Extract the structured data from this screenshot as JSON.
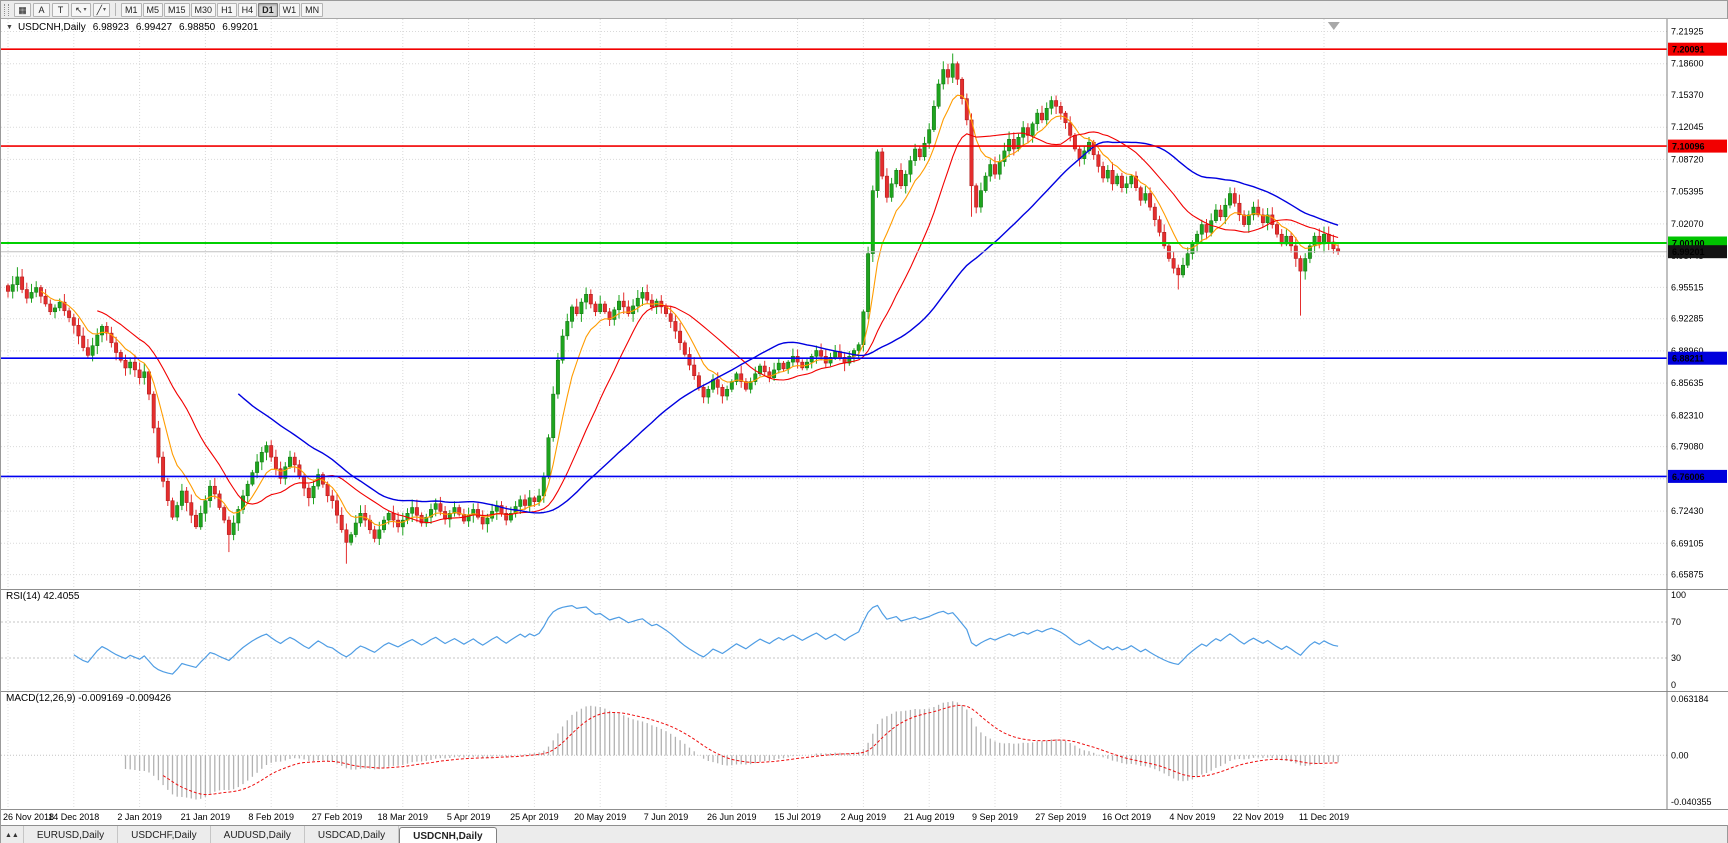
{
  "toolbar": {
    "icon_buttons": [
      {
        "name": "charts-grid-icon",
        "glyph": "▦"
      },
      {
        "name": "autoscroll-button",
        "glyph": "A"
      },
      {
        "name": "templates-button",
        "glyph": "T"
      },
      {
        "name": "cursor-tools-button",
        "glyph": "↖",
        "caret": "▾"
      },
      {
        "name": "line-tools-button",
        "glyph": "╱",
        "caret": "▾"
      }
    ],
    "timeframes": [
      "M1",
      "M5",
      "M15",
      "M30",
      "H1",
      "H4",
      "D1",
      "W1",
      "MN"
    ],
    "active_timeframe": "D1"
  },
  "chart_header": {
    "symbol": "USDCNH,Daily",
    "open": "6.98923",
    "high": "6.99427",
    "low": "6.98850",
    "close": "6.99201"
  },
  "rsi": {
    "header": "RSI(14) 42.4055",
    "levels": [
      100,
      70,
      30,
      0
    ],
    "line_color": "#4f9de4"
  },
  "macd": {
    "header": "MACD(12,26,9) -0.009169 -0.009426",
    "axis_top": "0.063184",
    "axis_zero": "0.00",
    "axis_bottom": "-0.040355",
    "hist_color": "#b2b2b2",
    "signal_color": "#ee1010"
  },
  "price_axis": {
    "labels": [
      "7.21925",
      "7.18600",
      "7.15370",
      "7.12045",
      "7.08720",
      "7.05395",
      "7.02070",
      "6.98745",
      "6.95515",
      "6.92285",
      "6.88960",
      "6.85635",
      "6.82310",
      "6.79080",
      "6.75755",
      "6.72430",
      "6.69105",
      "6.65875"
    ]
  },
  "hlines": [
    {
      "price": 7.20091,
      "label": "7.20091",
      "line": "#f20000",
      "badge": "#f20000",
      "width": 1.6
    },
    {
      "price": 7.10096,
      "label": "7.10096",
      "line": "#f20000",
      "badge": "#f20000",
      "width": 1.6
    },
    {
      "price": 7.001,
      "label": "7.00100",
      "line": "#00d000",
      "badge": "#00c400",
      "width": 2
    },
    {
      "price": 6.99201,
      "label": "6.99201",
      "line": "#c0c0c0",
      "badge": "#141414",
      "width": 1,
      "current": true
    },
    {
      "price": 6.88211,
      "label": "6.88211",
      "line": "#0000f0",
      "badge": "#0000dc",
      "width": 1.6
    },
    {
      "price": 6.76006,
      "label": "6.76006",
      "line": "#0000f0",
      "badge": "#0000dc",
      "width": 1.6
    }
  ],
  "date_axis": [
    "26 Nov 2018",
    "14 Dec 2018",
    "2 Jan 2019",
    "21 Jan 2019",
    "8 Feb 2019",
    "27 Feb 2019",
    "18 Mar 2019",
    "5 Apr 2019",
    "25 Apr 2019",
    "20 May 2019",
    "7 Jun 2019",
    "26 Jun 2019",
    "15 Jul 2019",
    "2 Aug 2019",
    "21 Aug 2019",
    "9 Sep 2019",
    "27 Sep 2019",
    "16 Oct 2019",
    "4 Nov 2019",
    "22 Nov 2019",
    "11 Dec 2019"
  ],
  "tabs": [
    {
      "label": "EURUSD,Daily",
      "active": false
    },
    {
      "label": "USDCHF,Daily",
      "active": false
    },
    {
      "label": "AUDUSD,Daily",
      "active": false
    },
    {
      "label": "USDCAD,Daily",
      "active": false
    },
    {
      "label": "USDCNH,Daily",
      "active": true
    }
  ],
  "chart_data": {
    "type": "candlestick",
    "symbol": "USDCNH",
    "timeframe": "Daily",
    "title": "USDCNH,Daily",
    "price_max": 7.228,
    "price_min": 6.648,
    "label_every": 14,
    "shift_marker_frac": 0.8,
    "colors": {
      "up": "#1ea41e",
      "up_border": "#107010",
      "down": "#e42e2e",
      "down_border": "#a81414"
    },
    "ma": [
      {
        "type": "ema",
        "period": 8,
        "color": "#ff9c00",
        "width": 1.1
      },
      {
        "type": "sma",
        "period": 20,
        "color": "#f20000",
        "width": 1.1
      },
      {
        "type": "sma",
        "period": 50,
        "color": "#0000e0",
        "width": 1.4
      }
    ],
    "closes": [
      6.951,
      6.958,
      6.966,
      6.953,
      6.944,
      6.95,
      6.955,
      6.946,
      6.938,
      6.93,
      6.934,
      6.94,
      6.931,
      6.924,
      6.916,
      6.905,
      6.893,
      6.885,
      6.895,
      6.906,
      6.915,
      6.908,
      6.898,
      6.888,
      6.88,
      6.872,
      6.878,
      6.87,
      6.862,
      6.868,
      6.845,
      6.81,
      6.78,
      6.755,
      6.735,
      6.718,
      6.73,
      6.745,
      6.733,
      6.72,
      6.708,
      6.722,
      6.735,
      6.75,
      6.742,
      6.728,
      6.715,
      6.7,
      6.712,
      6.726,
      6.74,
      6.752,
      6.764,
      6.775,
      6.785,
      6.792,
      6.78,
      6.768,
      6.758,
      6.77,
      6.78,
      6.772,
      6.76,
      6.748,
      6.738,
      6.75,
      6.762,
      6.752,
      6.74,
      6.735,
      6.72,
      6.705,
      6.692,
      6.7,
      6.712,
      6.722,
      6.715,
      6.705,
      6.696,
      6.705,
      6.715,
      6.722,
      6.715,
      6.708,
      6.715,
      6.722,
      6.728,
      6.72,
      6.712,
      6.718,
      6.726,
      6.732,
      6.724,
      6.716,
      6.722,
      6.728,
      6.721,
      6.714,
      6.72,
      6.726,
      6.718,
      6.711,
      6.717,
      6.724,
      6.73,
      6.722,
      6.715,
      6.722,
      6.729,
      6.736,
      6.73,
      6.738,
      6.734,
      6.74,
      6.76,
      6.8,
      6.845,
      6.88,
      6.905,
      6.92,
      6.935,
      6.928,
      6.94,
      6.948,
      6.938,
      6.93,
      6.938,
      6.93,
      6.922,
      6.932,
      6.941,
      6.935,
      6.928,
      6.936,
      6.944,
      6.95,
      6.942,
      6.935,
      6.941,
      6.935,
      6.928,
      6.92,
      6.91,
      6.898,
      6.886,
      6.875,
      6.864,
      6.852,
      6.842,
      6.85,
      6.86,
      6.852,
      6.843,
      6.85,
      6.858,
      6.866,
      6.858,
      6.85,
      6.858,
      6.866,
      6.874,
      6.868,
      6.862,
      6.87,
      6.877,
      6.871,
      6.878,
      6.884,
      6.878,
      6.872,
      6.878,
      6.884,
      6.89,
      6.884,
      6.877,
      6.883,
      6.889,
      6.883,
      6.877,
      6.884,
      6.89,
      6.896,
      6.93,
      6.99,
      7.055,
      7.095,
      7.07,
      7.048,
      7.062,
      7.076,
      7.06,
      7.072,
      7.086,
      7.098,
      7.09,
      7.104,
      7.118,
      7.142,
      7.165,
      7.18,
      7.172,
      7.186,
      7.17,
      7.15,
      7.128,
      7.06,
      7.038,
      7.055,
      7.07,
      7.082,
      7.072,
      7.085,
      7.096,
      7.108,
      7.098,
      7.11,
      7.12,
      7.112,
      7.124,
      7.135,
      7.128,
      7.14,
      7.148,
      7.142,
      7.135,
      7.125,
      7.112,
      7.098,
      7.088,
      7.096,
      7.105,
      7.092,
      7.08,
      7.068,
      7.076,
      7.062,
      7.07,
      7.058,
      7.062,
      7.07,
      7.058,
      7.045,
      7.052,
      7.038,
      7.025,
      7.012,
      6.998,
      6.985,
      6.975,
      6.968,
      6.978,
      6.99,
      7.0,
      7.01,
      7.02,
      7.012,
      7.024,
      7.035,
      7.028,
      7.04,
      7.052,
      7.042,
      7.03,
      7.02,
      7.03,
      7.038,
      7.03,
      7.022,
      7.03,
      7.02,
      7.01,
      7.0,
      7.008,
      6.998,
      6.985,
      6.972,
      6.985,
      6.998,
      7.008,
      7.0,
      7.01,
      7.002,
      6.995,
      6.99201
    ],
    "wick_overrides": [
      {
        "i": 2,
        "high": 6.976
      },
      {
        "i": 47,
        "low": 6.682
      },
      {
        "i": 72,
        "low": 6.67
      },
      {
        "i": 201,
        "high": 7.1965
      },
      {
        "i": 205,
        "low": 7.028
      },
      {
        "i": 249,
        "low": 6.953
      },
      {
        "i": 275,
        "low": 6.926
      }
    ]
  }
}
